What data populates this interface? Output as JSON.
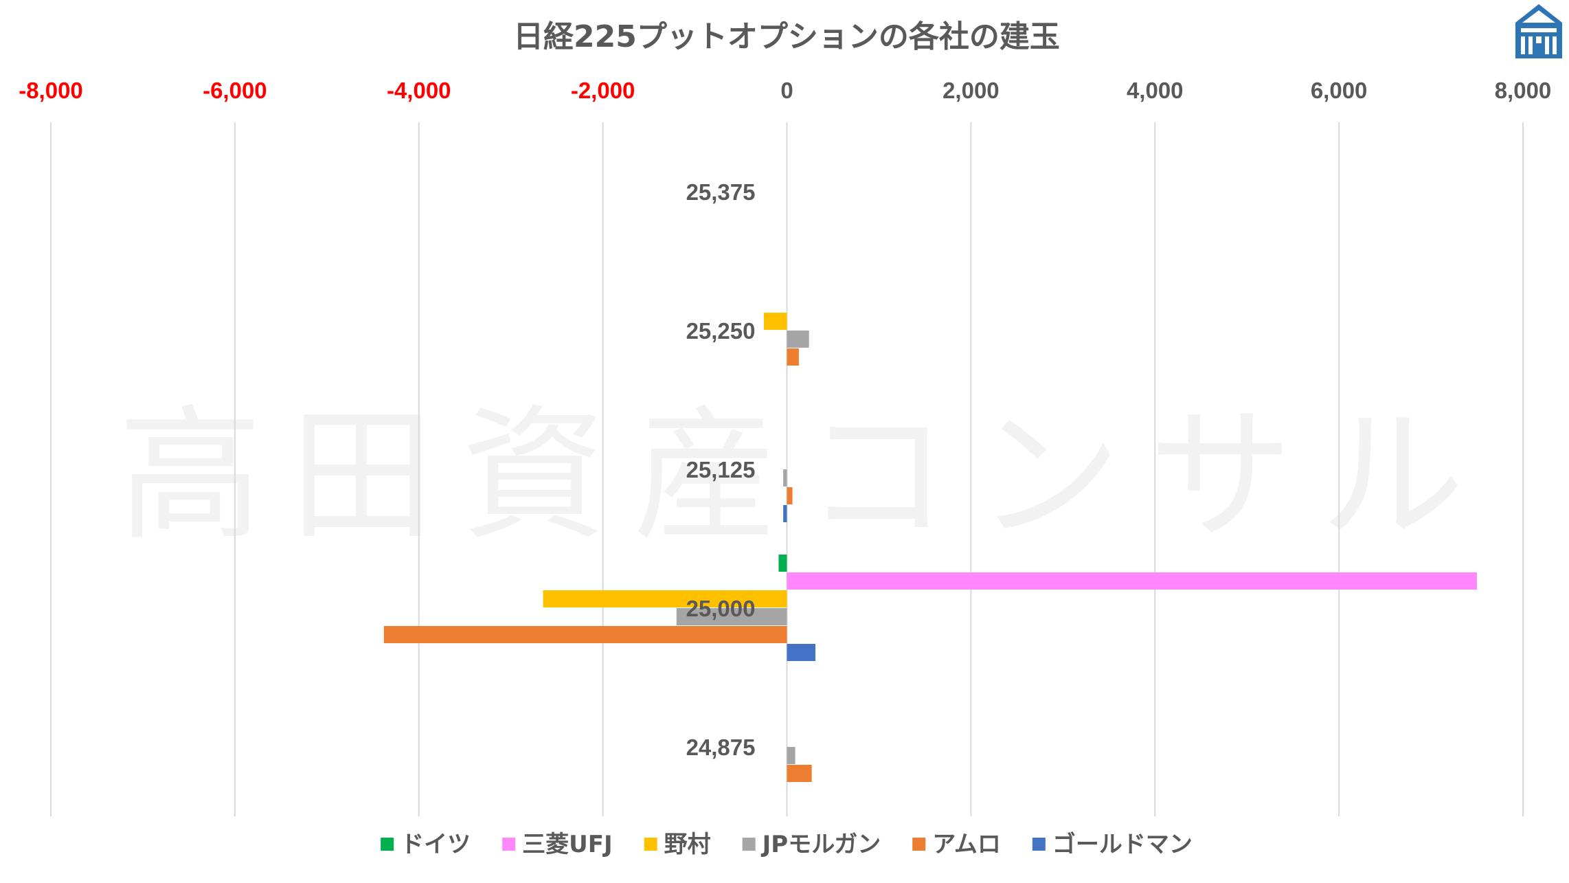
{
  "chart_data": {
    "type": "bar",
    "orientation": "horizontal",
    "title": "日経225プットオプションの各社の建玉",
    "watermark": "高田資産コンサル",
    "xlim": [
      -8000,
      8000
    ],
    "x_ticks": [
      {
        "value": -8000,
        "label": "-8,000"
      },
      {
        "value": -6000,
        "label": "-6,000"
      },
      {
        "value": -4000,
        "label": "-4,000"
      },
      {
        "value": -2000,
        "label": "-2,000"
      },
      {
        "value": 0,
        "label": "0"
      },
      {
        "value": 2000,
        "label": "2,000"
      },
      {
        "value": 4000,
        "label": "4,000"
      },
      {
        "value": 6000,
        "label": "6,000"
      },
      {
        "value": 8000,
        "label": "8,000"
      }
    ],
    "negative_tick_color": "#ff0000",
    "positive_tick_color": "#595959",
    "grid": true,
    "legend_position": "bottom",
    "categories": [
      "25,375",
      "25,250",
      "25,125",
      "25,000",
      "24,875"
    ],
    "series": [
      {
        "name": "ドイツ",
        "color": "#00b050",
        "values": [
          0,
          0,
          0,
          -90,
          0
        ]
      },
      {
        "name": "三菱UFJ",
        "color": "#ff88ff",
        "values": [
          0,
          0,
          0,
          7500,
          0
        ]
      },
      {
        "name": "野村",
        "color": "#ffc000",
        "values": [
          0,
          -250,
          0,
          -2650,
          0
        ]
      },
      {
        "name": "JPモルガン",
        "color": "#a5a5a5",
        "values": [
          0,
          240,
          -40,
          -1200,
          90
        ]
      },
      {
        "name": "アムロ",
        "color": "#ed7d31",
        "values": [
          0,
          130,
          60,
          -4380,
          270
        ]
      },
      {
        "name": "ゴールドマン",
        "color": "#4472c4",
        "values": [
          0,
          0,
          -40,
          310,
          0
        ]
      }
    ]
  }
}
